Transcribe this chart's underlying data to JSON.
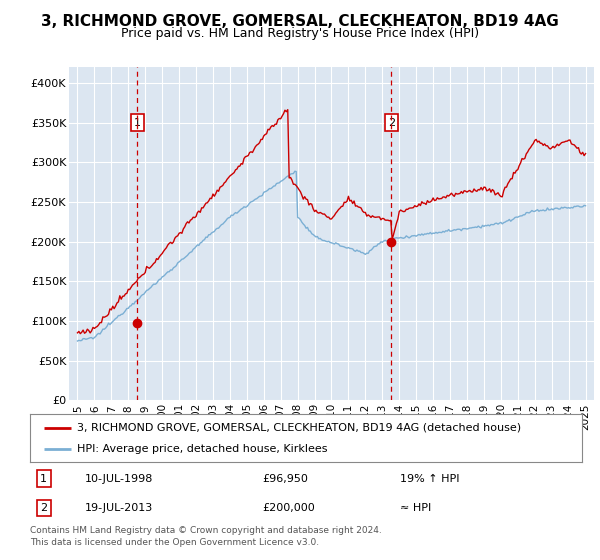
{
  "title": "3, RICHMOND GROVE, GOMERSAL, CLECKHEATON, BD19 4AG",
  "subtitle": "Price paid vs. HM Land Registry's House Price Index (HPI)",
  "legend_line1": "3, RICHMOND GROVE, GOMERSAL, CLECKHEATON, BD19 4AG (detached house)",
  "legend_line2": "HPI: Average price, detached house, Kirklees",
  "annotation1_date": "10-JUL-1998",
  "annotation1_price": "£96,950",
  "annotation1_hpi": "19% ↑ HPI",
  "annotation2_date": "19-JUL-2013",
  "annotation2_price": "£200,000",
  "annotation2_hpi": "≈ HPI",
  "footer": "Contains HM Land Registry data © Crown copyright and database right 2024.\nThis data is licensed under the Open Government Licence v3.0.",
  "ylim": [
    0,
    420000
  ],
  "yticks": [
    0,
    50000,
    100000,
    150000,
    200000,
    250000,
    300000,
    350000,
    400000
  ],
  "ytick_labels": [
    "£0",
    "£50K",
    "£100K",
    "£150K",
    "£200K",
    "£250K",
    "£300K",
    "£350K",
    "£400K"
  ],
  "xmin": 1995,
  "xmax": 2025,
  "marker1_x": 1998.54,
  "marker1_y": 96950,
  "marker2_x": 2013.54,
  "marker2_y": 200000,
  "bg_color": "#dce6f1",
  "red_color": "#cc0000",
  "blue_color": "#7bafd4",
  "title_fontsize": 11,
  "subtitle_fontsize": 9
}
